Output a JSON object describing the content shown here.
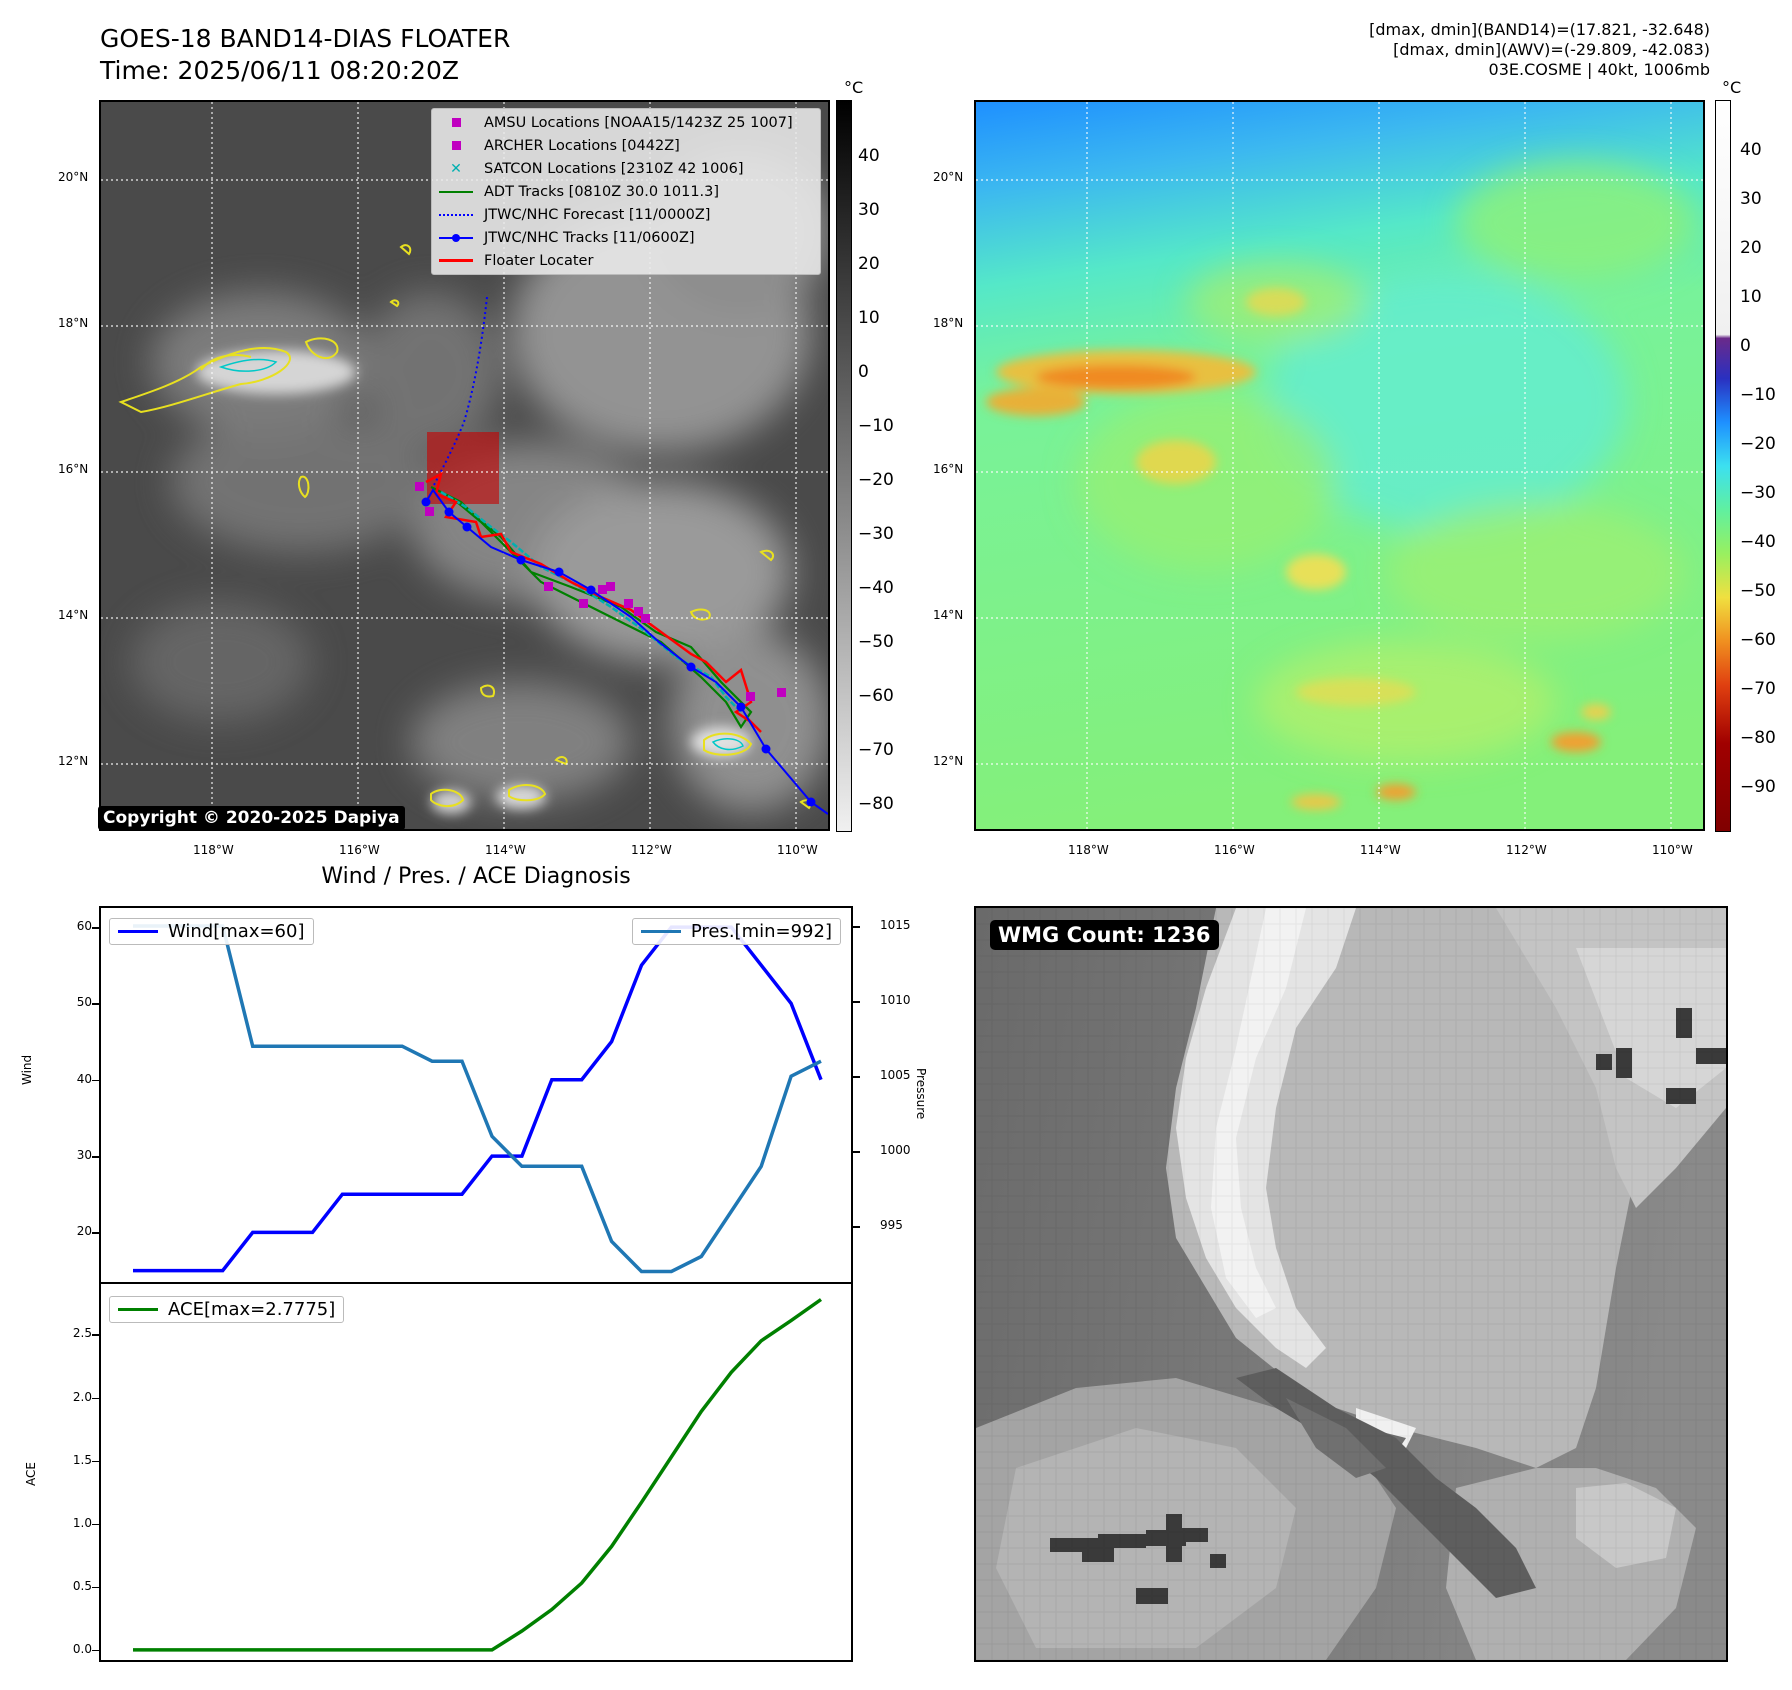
{
  "header": {
    "title_line1": "GOES-18 BAND14-DIAS FLOATER",
    "title_line2": "Time: 2025/06/11 08:20:20Z",
    "info_line1": "[dmax, dmin](BAND14)=(17.821, -32.648)",
    "info_line2": "[dmax, dmin](AWV)=(-29.809, -42.083)",
    "info_line3": "03E.COSME | 40kt, 1006mb"
  },
  "colors": {
    "amsu": "#c000c0",
    "archer": "#c000c0",
    "satcon": "#00b0b0",
    "adt": "#008000",
    "forecast": "#0000ff",
    "tracks": "#0000ff",
    "floater": "#ff0000",
    "wind": "#0000ff",
    "pressure": "#1f77b4",
    "ace": "#008000"
  },
  "map_axes": {
    "lat_labels": [
      "20°N",
      "18°N",
      "16°N",
      "14°N",
      "12°N"
    ],
    "lon_labels": [
      "118°W",
      "116°W",
      "114°W",
      "112°W",
      "110°W"
    ]
  },
  "ir_panel": {
    "legend": [
      {
        "label": "AMSU Locations [NOAA15/1423Z 25 1007]",
        "icon": "square-marker"
      },
      {
        "label": "ARCHER Locations [0442Z]",
        "icon": "square-marker"
      },
      {
        "label": "SATCON Locations [2310Z 42 1006]",
        "icon": "x-marker"
      },
      {
        "label": "ADT Tracks [0810Z 30.0 1011.3]",
        "icon": "solid-line"
      },
      {
        "label": "JTWC/NHC Forecast [11/0000Z]",
        "icon": "dotted-line"
      },
      {
        "label": "JTWC/NHC Tracks [11/0600Z]",
        "icon": "line-dot"
      },
      {
        "label": "Floater Locater",
        "icon": "solid-line"
      }
    ],
    "copyright": "Copyright © 2020-2025 Dapiya",
    "colorbar_unit": "°C",
    "colorbar_ticks": [
      "40",
      "30",
      "20",
      "10",
      "0",
      "−10",
      "−20",
      "−30",
      "−40",
      "−50",
      "−60",
      "−70",
      "−80"
    ]
  },
  "wv_panel": {
    "colorbar_unit": "°C",
    "colorbar_ticks": [
      "40",
      "30",
      "20",
      "10",
      "0",
      "−10",
      "−20",
      "−30",
      "−40",
      "−50",
      "−60",
      "−70",
      "−80",
      "−90"
    ]
  },
  "diag_panel": {
    "title": "Wind / Pres. / ACE Diagnosis",
    "wind_legend": "Wind[max=60]",
    "pres_legend": "Pres.[min=992]",
    "ace_legend": "ACE[max=2.7775]",
    "wind_ylabel": "Wind",
    "pres_ylabel": "Pressure",
    "ace_ylabel": "ACE"
  },
  "wmg_panel": {
    "label": "WMG Count: 1236"
  },
  "chart_data": [
    {
      "type": "line",
      "name": "wind",
      "x": [
        0,
        1,
        2,
        3,
        4,
        5,
        6,
        7,
        8,
        9,
        10,
        11,
        12,
        13,
        14,
        15,
        16,
        17,
        18,
        19,
        20,
        21,
        22,
        23
      ],
      "values": [
        15,
        15,
        15,
        15,
        20,
        20,
        20,
        25,
        25,
        25,
        25,
        25,
        30,
        30,
        40,
        40,
        45,
        55,
        60,
        60,
        60,
        55,
        50,
        40
      ],
      "ylim": [
        13.5,
        62.5
      ],
      "yticks": [
        20,
        30,
        40,
        50,
        60
      ]
    },
    {
      "type": "line",
      "name": "pressure",
      "x": [
        0,
        1,
        2,
        3,
        4,
        5,
        6,
        7,
        8,
        9,
        10,
        11,
        12,
        13,
        14,
        15,
        16,
        17,
        18,
        19,
        20,
        21,
        22,
        23
      ],
      "values": [
        1015,
        1015,
        1015,
        1015,
        1007,
        1007,
        1007,
        1007,
        1007,
        1007,
        1006,
        1006,
        1001,
        999,
        999,
        999,
        994,
        992,
        992,
        993,
        996,
        999,
        1005,
        1006
      ],
      "ylim": [
        991.3,
        1016.2
      ],
      "yticks": [
        995,
        1000,
        1005,
        1010,
        1015
      ]
    },
    {
      "type": "line",
      "name": "ace",
      "x": [
        0,
        1,
        2,
        3,
        4,
        5,
        6,
        7,
        8,
        9,
        10,
        11,
        12,
        13,
        14,
        15,
        16,
        17,
        18,
        19,
        20,
        21,
        22,
        23
      ],
      "values": [
        0,
        0,
        0,
        0,
        0,
        0,
        0,
        0,
        0,
        0,
        0,
        0,
        0,
        0.15,
        0.32,
        0.53,
        0.82,
        1.17,
        1.53,
        1.89,
        2.2,
        2.45,
        2.61,
        2.7775
      ],
      "ylim": [
        -0.08,
        2.9
      ],
      "yticks": [
        0.0,
        0.5,
        1.0,
        1.5,
        2.0,
        2.5
      ]
    }
  ]
}
